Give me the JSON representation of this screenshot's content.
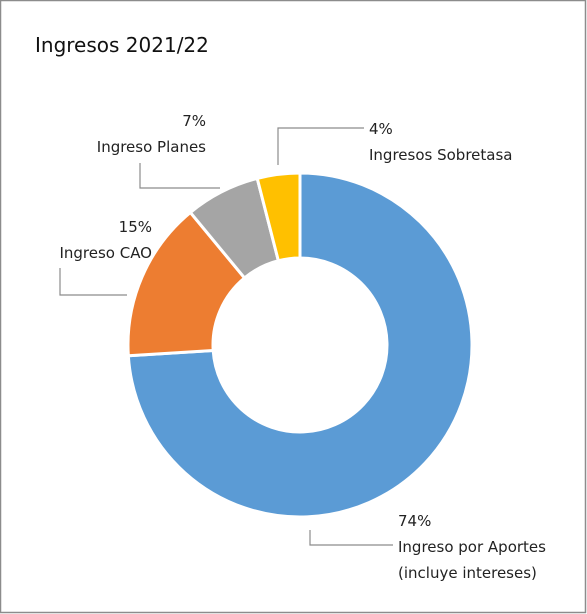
{
  "chart_data": {
    "type": "donut",
    "title": "Ingresos 2021/22",
    "categories": [
      "Ingreso por Aportes (incluye intereses)",
      "Ingreso CAO",
      "Ingreso Planes",
      "Ingresos Sobretasa"
    ],
    "values": [
      74,
      15,
      7,
      4
    ],
    "value_labels": [
      "74%",
      "15%",
      "7%",
      "4%"
    ],
    "colors": [
      "#5b9bd5",
      "#ed7d31",
      "#a5a5a5",
      "#ffc000"
    ]
  }
}
